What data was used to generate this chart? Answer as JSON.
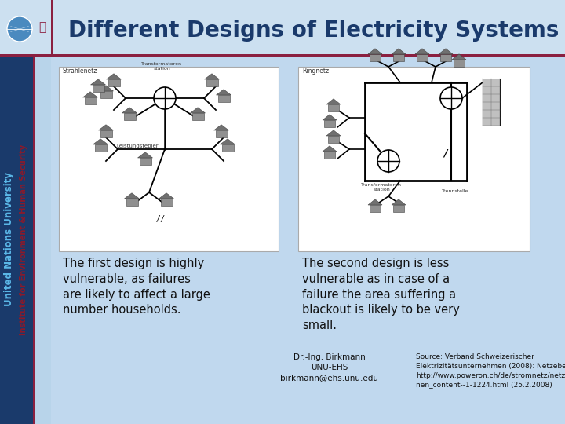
{
  "title": "Different Designs of Electricity Systems",
  "title_color": "#1a3a6b",
  "title_fontsize": 20,
  "left_text1": "United Nations University",
  "left_text2": "Institute for Environment & Human Security",
  "left_text1_color": "#5bb8e8",
  "left_text2_color": "#8b1a2b",
  "caption_left": "The first design is highly\nvulnerable, as failures\nare likely to affect a large\nnumber households.",
  "caption_right": "The second design is less\nvulnerable as in case of a\nfailure the area suffering a\nblackout is likely to be very\nsmall.",
  "caption_color": "#111111",
  "caption_fontsize": 10.5,
  "source_text": "Source: Verband Schweizerischer\nElektrizitätsunternehmen (2008): Netzebenen.\nhttp://www.poweron.ch/de/stromnetz/netzebe\nnen_content--1-1224.html (25.2.2008)",
  "source_fontsize": 6.5,
  "contact_text": "Dr.-Ing. Birkmann\nUNU-EHS\nbirkmann@ehs.unu.edu",
  "contact_fontsize": 7.5,
  "bg_color": "#b8d4ea",
  "header_color": "#c8def0",
  "sidebar_color": "#1a3a6b",
  "divider_color": "#8b2040",
  "box_bg": "#f5f5f5"
}
